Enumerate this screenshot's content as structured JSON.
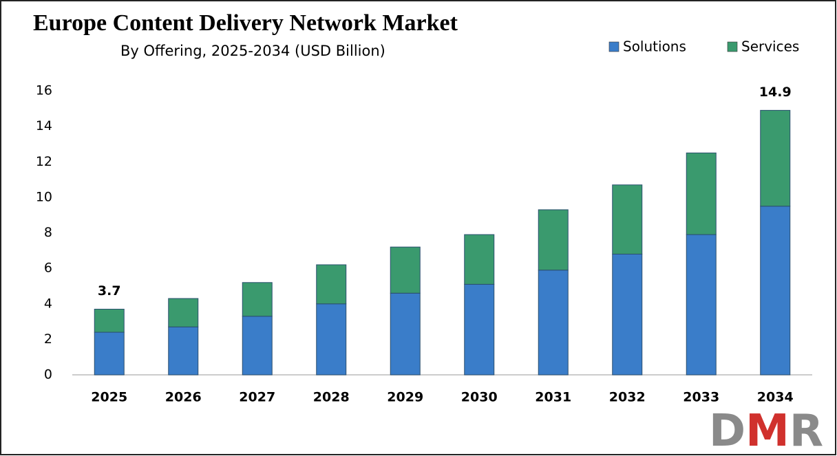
{
  "chart_data": {
    "type": "stacked_bar",
    "title": "Europe Content Delivery Network Market",
    "subtitle": "By Offering, 2025-2034 (USD Billion)",
    "categories": [
      "2025",
      "2026",
      "2027",
      "2028",
      "2029",
      "2030",
      "2031",
      "2032",
      "2033",
      "2034"
    ],
    "series": [
      {
        "name": "Solutions",
        "color": "#3a7dc9",
        "values": [
          2.4,
          2.7,
          3.3,
          4.0,
          4.6,
          5.1,
          5.9,
          6.8,
          7.9,
          9.5
        ]
      },
      {
        "name": "Services",
        "color": "#3a9a6e",
        "values": [
          1.3,
          1.6,
          1.9,
          2.2,
          2.6,
          2.8,
          3.4,
          3.9,
          4.6,
          5.4
        ]
      }
    ],
    "total_labels": [
      {
        "category": "2025",
        "value": 3.7
      },
      {
        "category": "2034",
        "value": 14.9
      }
    ],
    "ylim": [
      0,
      16
    ],
    "yticks": [
      0,
      2,
      4,
      6,
      8,
      10,
      12,
      14,
      16
    ],
    "legend": "top-right",
    "logo": [
      "D",
      "M",
      "R"
    ]
  }
}
